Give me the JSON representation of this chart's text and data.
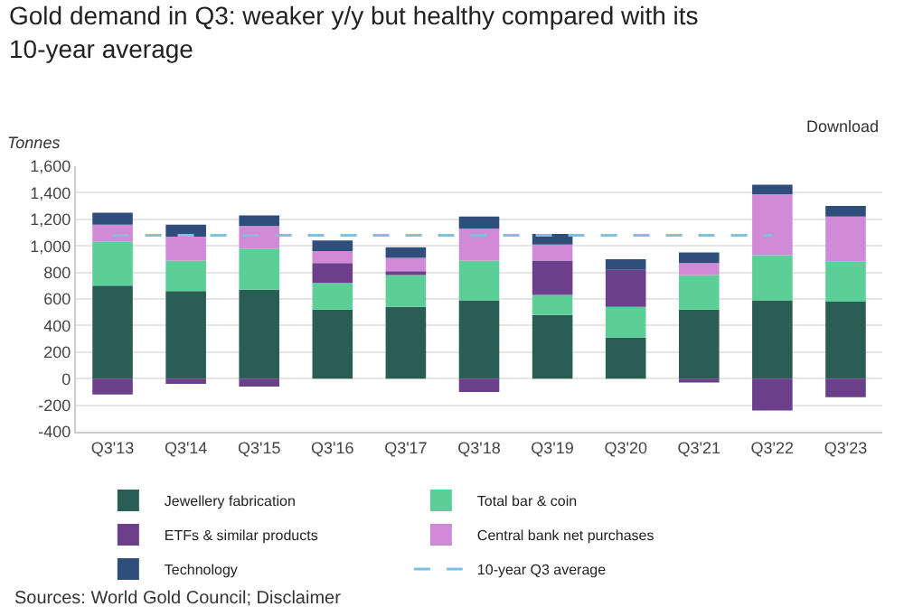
{
  "chart_data": {
    "type": "bar",
    "stacked": true,
    "title": "Gold demand in Q3: weaker y/y but healthy compared with its 10-year average",
    "ylabel": "Tonnes",
    "categories": [
      "Q3'13",
      "Q3'14",
      "Q3'15",
      "Q3'16",
      "Q3'17",
      "Q3'18",
      "Q3'19",
      "Q3'20",
      "Q3'21",
      "Q3'22",
      "Q3'23"
    ],
    "series": [
      {
        "name": "Jewellery fabrication",
        "color": "#2a5e55",
        "values": [
          700,
          660,
          670,
          520,
          540,
          590,
          480,
          310,
          520,
          590,
          580
        ]
      },
      {
        "name": "Total bar & coin",
        "color": "#5ccf98",
        "values": [
          330,
          230,
          310,
          200,
          240,
          300,
          150,
          230,
          260,
          340,
          300
        ]
      },
      {
        "name": "ETFs & similar products",
        "color": "#6b3f8a",
        "values": [
          -120,
          -40,
          -60,
          150,
          30,
          -100,
          260,
          280,
          -30,
          -240,
          -140
        ]
      },
      {
        "name": "Central bank net purchases",
        "color": "#d08ad8",
        "values": [
          130,
          180,
          170,
          90,
          100,
          240,
          120,
          null,
          90,
          460,
          340
        ]
      },
      {
        "name": "Technology",
        "color": "#2f4e7c",
        "values": [
          90,
          90,
          80,
          80,
          80,
          90,
          80,
          80,
          80,
          70,
          80
        ]
      },
      {
        "name": "10-year Q3 average",
        "type": "line",
        "line_style": "dashed",
        "color": "#7fbfe0",
        "values": [
          1080,
          1080,
          1080,
          1080,
          1080,
          1080,
          1080,
          1080,
          1080,
          1080,
          null
        ]
      }
    ],
    "ylim": [
      -400,
      1600
    ],
    "yticks": [
      {
        "value": -400,
        "label": "-400"
      },
      {
        "value": -200,
        "label": "-200"
      },
      0,
      200,
      400,
      600,
      800,
      {
        "value": 1000,
        "label": "1,000"
      },
      {
        "value": 1200,
        "label": "1,200"
      },
      {
        "value": 1400,
        "label": "1,400"
      },
      {
        "value": 1600,
        "label": "1,600"
      }
    ],
    "grid": "y",
    "legend": "bottom",
    "annotations": [
      "Download",
      "Sources: World Gold Council; Disclaimer"
    ]
  }
}
